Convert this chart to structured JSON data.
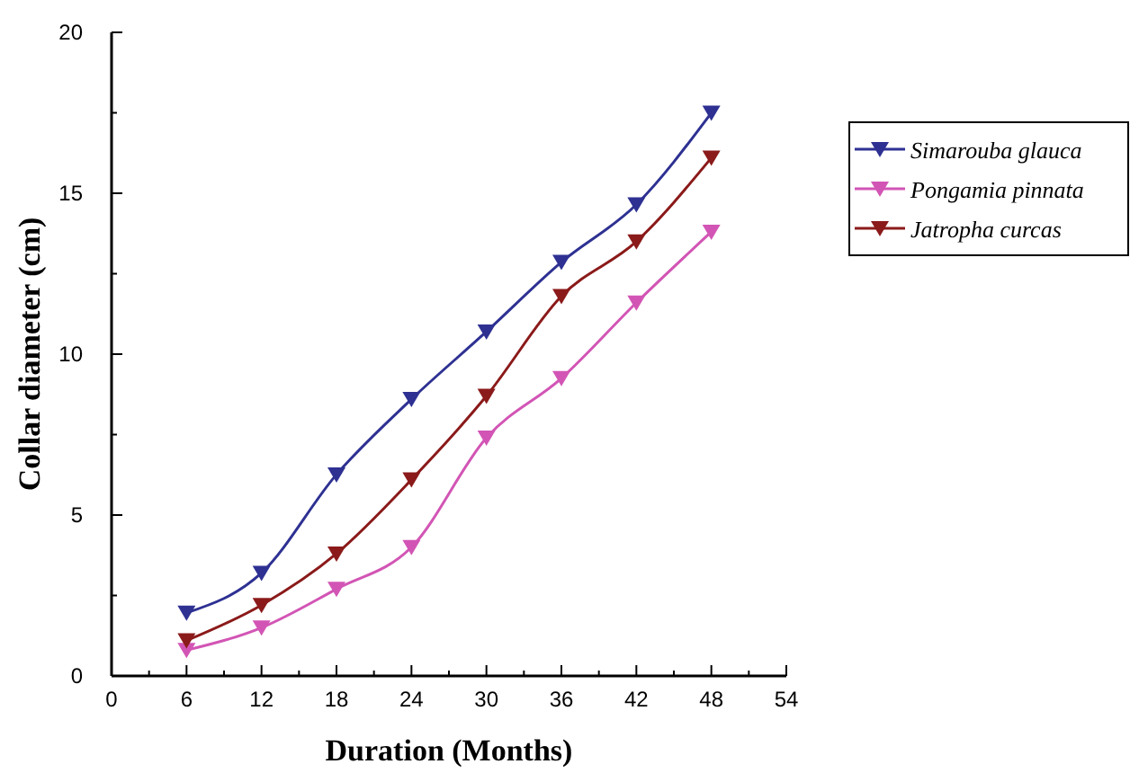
{
  "chart_data": {
    "type": "line",
    "xlabel": "Duration (Months)",
    "ylabel": "Collar diameter (cm)",
    "x": [
      6,
      12,
      18,
      24,
      30,
      36,
      42,
      48
    ],
    "series": [
      {
        "name": "Simarouba glauca",
        "color": "#2e3192",
        "values": [
          1.96,
          3.2,
          6.26,
          8.6,
          10.7,
          12.86,
          14.65,
          17.5
        ]
      },
      {
        "name": "Pongamia pinnata",
        "color": "#d255b5",
        "values": [
          0.8,
          1.5,
          2.7,
          4.0,
          7.4,
          9.25,
          11.6,
          13.8
        ]
      },
      {
        "name": "Jatropha curcas",
        "color": "#8b1a1a",
        "values": [
          1.1,
          2.2,
          3.8,
          6.1,
          8.7,
          11.8,
          13.5,
          16.1
        ]
      }
    ],
    "xlim": [
      0,
      54
    ],
    "xticks": [
      0,
      6,
      12,
      18,
      24,
      30,
      36,
      42,
      48,
      54
    ],
    "ylim": [
      0,
      20
    ],
    "yticks": [
      0,
      5,
      10,
      15,
      20
    ],
    "marker": "triangle",
    "line_style": "solid",
    "legend": "right",
    "grid": false
  }
}
